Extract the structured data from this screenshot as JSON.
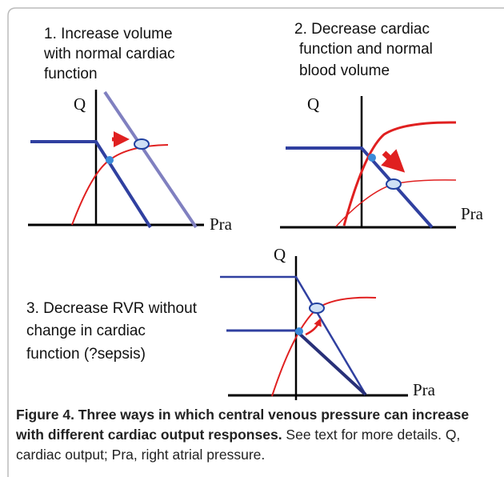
{
  "panels": [
    {
      "title_lines": [
        "1. Increase  volume",
        "with normal cardiac",
        "function"
      ],
      "y_label": "Q",
      "x_label": "Pra"
    },
    {
      "title_lines": [
        "2. Decrease cardiac",
        "function and normal",
        "blood volume"
      ],
      "y_label": "Q",
      "x_label": "Pra"
    },
    {
      "title_lines": [
        "3. Decrease RVR without",
        "change in cardiac",
        "function (?sepsis)"
      ],
      "y_label": "Q",
      "x_label": "Pra"
    }
  ],
  "caption": {
    "title": "Figure 4. Three ways in which central venous pressure can increase with different cardiac output responses.",
    "text": " See text for more details. Q, cardiac output; Pra, right atrial pressure."
  }
}
